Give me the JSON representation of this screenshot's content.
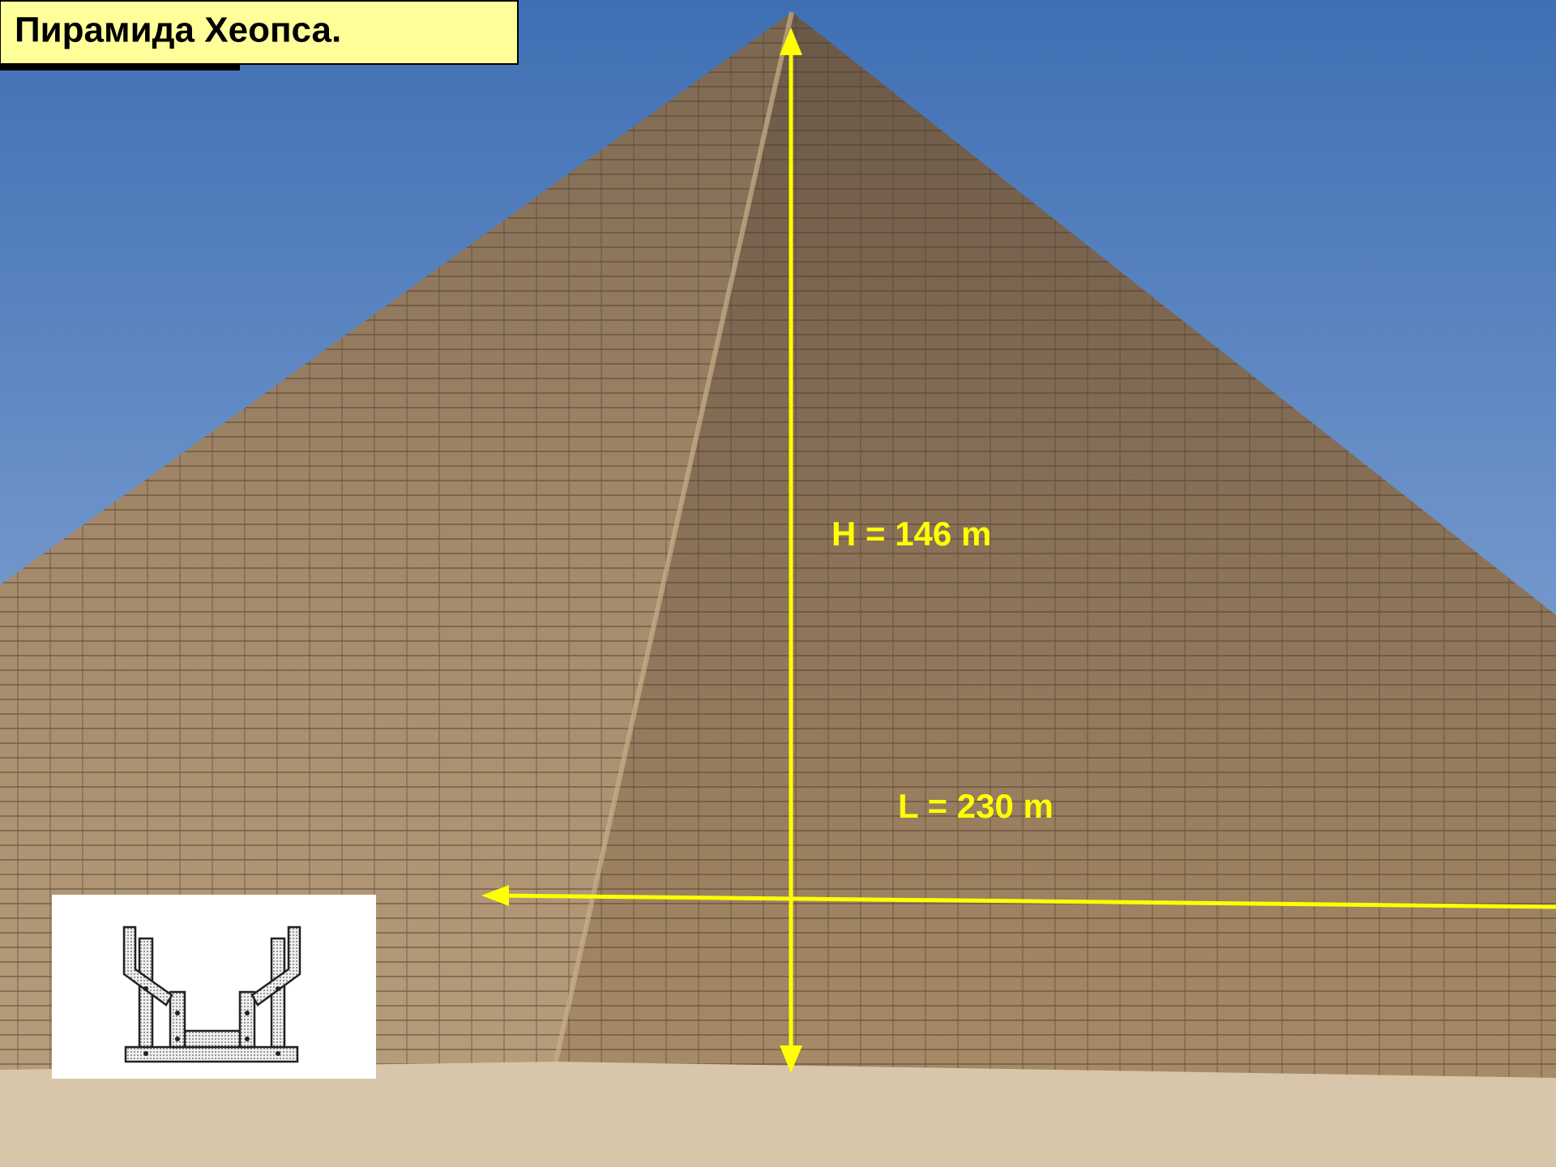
{
  "title": "Пирамида Хеопса.",
  "annotations": {
    "height": "H = 146 m",
    "length": "L = 230 m"
  }
}
